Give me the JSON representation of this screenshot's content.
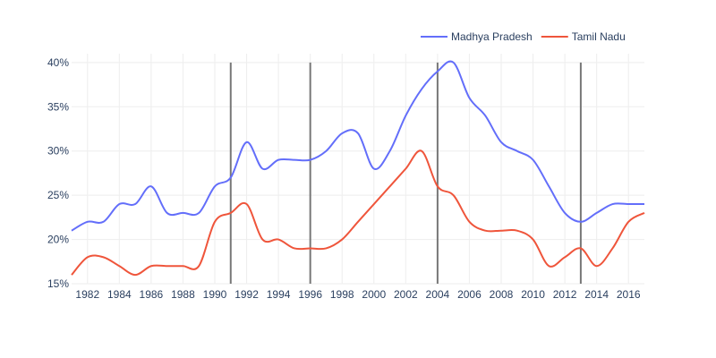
{
  "chart_data": {
    "type": "line",
    "title": "",
    "xlabel": "",
    "ylabel": "",
    "xlim": [
      1981,
      2017
    ],
    "ylim": [
      0.15,
      0.41
    ],
    "x_ticks": [
      1982,
      1984,
      1986,
      1988,
      1990,
      1992,
      1994,
      1996,
      1998,
      2000,
      2002,
      2004,
      2006,
      2008,
      2010,
      2012,
      2014,
      2016
    ],
    "y_ticks": [
      0.15,
      0.2,
      0.25,
      0.3,
      0.35,
      0.4
    ],
    "y_tick_labels": [
      "15%",
      "20%",
      "25%",
      "30%",
      "35%",
      "40%"
    ],
    "grid": true,
    "legend_position": "top-right",
    "vertical_markers": [
      1991,
      1996,
      2004,
      2013
    ],
    "x": [
      1981,
      1982,
      1983,
      1984,
      1985,
      1986,
      1987,
      1988,
      1989,
      1990,
      1991,
      1992,
      1993,
      1994,
      1995,
      1996,
      1997,
      1998,
      1999,
      2000,
      2001,
      2002,
      2003,
      2004,
      2005,
      2006,
      2007,
      2008,
      2009,
      2010,
      2011,
      2012,
      2013,
      2014,
      2015,
      2016,
      2017
    ],
    "series": [
      {
        "name": "Madhya Pradesh",
        "color": "#636efa",
        "values": [
          0.21,
          0.22,
          0.22,
          0.24,
          0.24,
          0.26,
          0.23,
          0.23,
          0.23,
          0.26,
          0.27,
          0.31,
          0.28,
          0.29,
          0.29,
          0.29,
          0.3,
          0.32,
          0.32,
          0.28,
          0.3,
          0.34,
          0.37,
          0.39,
          0.4,
          0.36,
          0.34,
          0.31,
          0.3,
          0.29,
          0.26,
          0.23,
          0.22,
          0.23,
          0.24,
          0.24,
          0.24
        ]
      },
      {
        "name": "Tamil Nadu",
        "color": "#ef553b",
        "values": [
          0.16,
          0.18,
          0.18,
          0.17,
          0.16,
          0.17,
          0.17,
          0.17,
          0.17,
          0.22,
          0.23,
          0.24,
          0.2,
          0.2,
          0.19,
          0.19,
          0.19,
          0.2,
          0.22,
          0.24,
          0.26,
          0.28,
          0.3,
          0.26,
          0.25,
          0.22,
          0.21,
          0.21,
          0.21,
          0.2,
          0.17,
          0.18,
          0.19,
          0.17,
          0.19,
          0.22,
          0.23
        ]
      }
    ]
  },
  "colors": {
    "axis_text": "#2a3f5f",
    "grid": "#eeeeee",
    "marker_line": "#777777"
  }
}
